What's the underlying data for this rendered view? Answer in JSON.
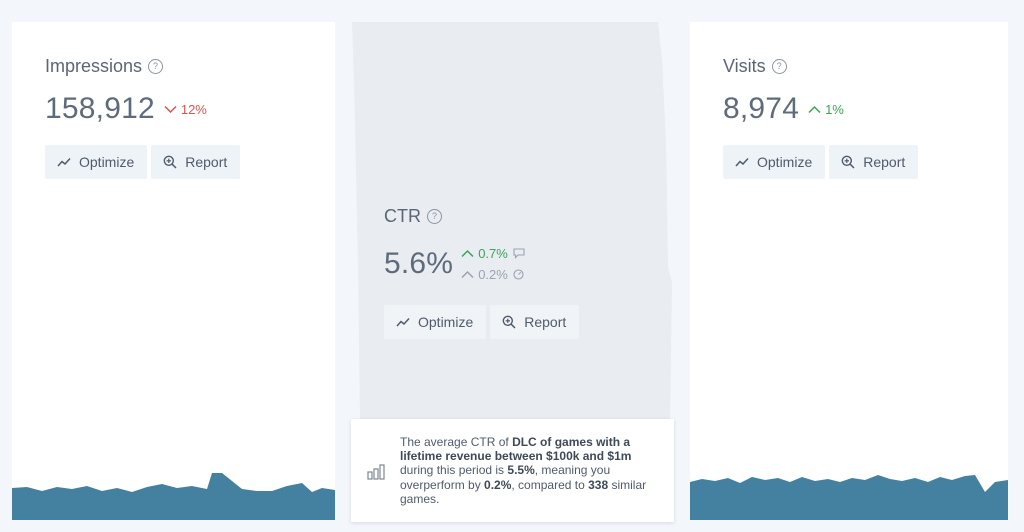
{
  "colors": {
    "wave": "#44809f",
    "ctr_background": "#e9edf2",
    "up": "#3aa655",
    "down": "#d9534f",
    "muted": "#9aa3ae"
  },
  "impressions": {
    "title": "Impressions",
    "help_icon": "?",
    "value": "158,912",
    "delta": "12%",
    "delta_direction": "down",
    "optimize_label": "Optimize",
    "report_label": "Report"
  },
  "ctr": {
    "title": "CTR",
    "help_icon": "?",
    "value": "5.6%",
    "delta_primary": "0.7%",
    "delta_primary_icon": "comment-icon",
    "delta_secondary": "0.2%",
    "delta_secondary_icon": "gauge-icon",
    "optimize_label": "Optimize",
    "report_label": "Report"
  },
  "visits": {
    "title": "Visits",
    "help_icon": "?",
    "value": "8,974",
    "delta": "1%",
    "delta_direction": "up",
    "optimize_label": "Optimize",
    "report_label": "Report"
  },
  "tooltip": {
    "icon": "bar-chart-icon",
    "t1": "The average CTR of ",
    "b1": "DLC of games with a lifetime revenue between $100k and $1m",
    "t2": " during this period is ",
    "b2": "5.5%",
    "t3": ", meaning you overperform by ",
    "b3": "0.2%",
    "t4": ", compared to ",
    "b4": "338",
    "t5": " similar games."
  }
}
